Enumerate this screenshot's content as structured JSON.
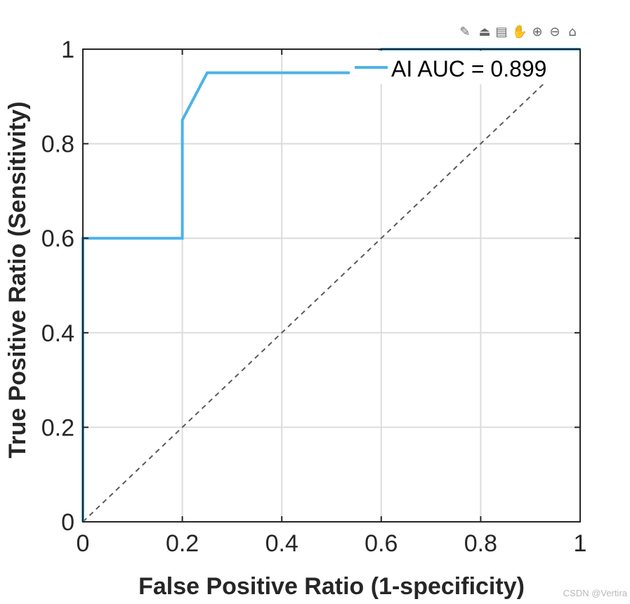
{
  "toolbar": {
    "icons": [
      "brush-icon",
      "export-icon",
      "datatip-icon",
      "pan-hand-icon",
      "zoom-in-icon",
      "zoom-out-icon",
      "home-icon"
    ]
  },
  "watermark": "CSDN @Vertira",
  "colors": {
    "roc_line": "#4DB3E6",
    "diagonal": "#5a5a5a",
    "grid": "#dcdcdc",
    "axis": "#262626"
  },
  "chart_data": {
    "type": "line",
    "title": "",
    "xlabel": "False Positive Ratio (1-specificity)",
    "ylabel": "True Positive Ratio (Sensitivity)",
    "xlim": [
      0,
      1
    ],
    "ylim": [
      0,
      1
    ],
    "grid": true,
    "legend_position": "top-right",
    "x_ticks": [
      0,
      0.2,
      0.4,
      0.6,
      0.8,
      1
    ],
    "y_ticks": [
      0,
      0.2,
      0.4,
      0.6,
      0.8,
      1
    ],
    "x_tick_labels": [
      "0",
      "0.2",
      "0.4",
      "0.6",
      "0.8",
      "1"
    ],
    "y_tick_labels": [
      "0",
      "0.2",
      "0.4",
      "0.6",
      "0.8",
      "1"
    ],
    "series": [
      {
        "name": "AI AUC = 0.899",
        "style": "solid",
        "x": [
          0,
          0,
          0.2,
          0.2,
          0.25,
          0.55,
          0.6,
          0.8,
          1,
          1
        ],
        "y": [
          0,
          0.6,
          0.6,
          0.85,
          0.95,
          0.95,
          1,
          1,
          1,
          1
        ]
      },
      {
        "style": "dashed",
        "x": [
          0,
          1
        ],
        "y": [
          0,
          1
        ]
      }
    ]
  }
}
